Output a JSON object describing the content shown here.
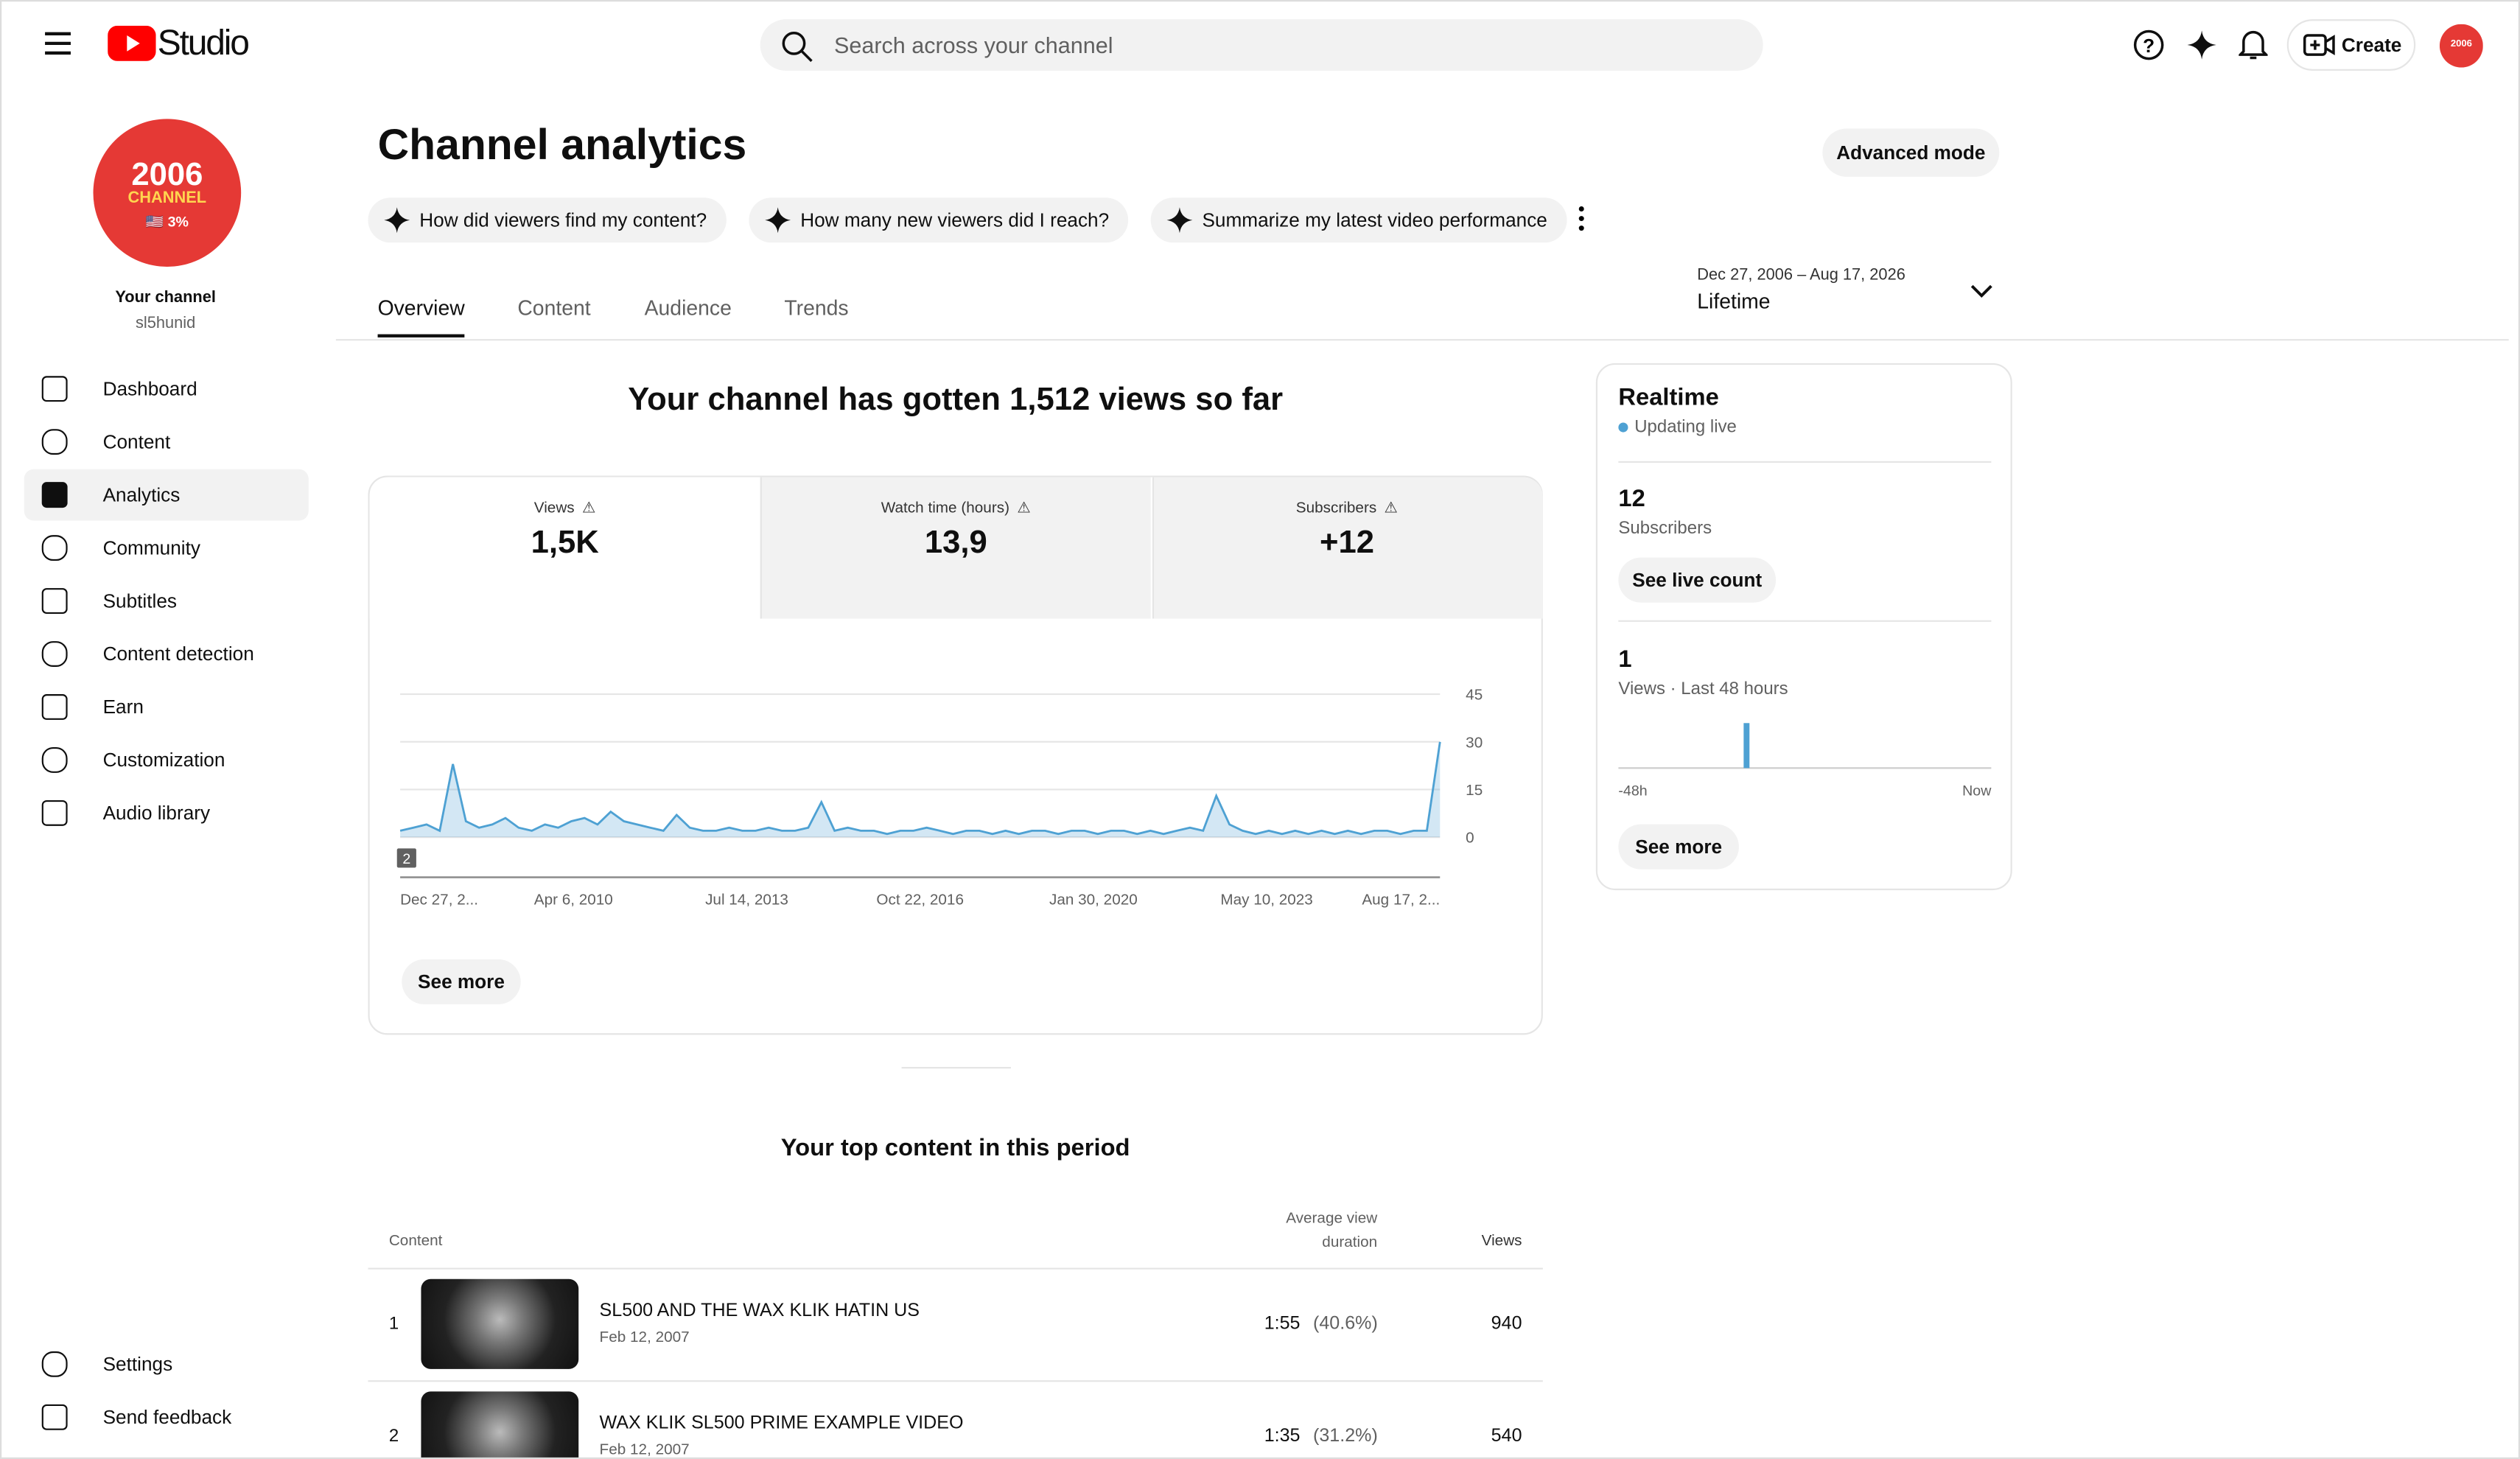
{
  "header": {
    "logo": "Studio",
    "search_placeholder": "Search across your channel",
    "create": "Create"
  },
  "sidebar": {
    "badge_year": "2006",
    "badge_word": "CHANNEL",
    "badge_small": "🇺🇸 3%",
    "channel_label": "Your channel",
    "handle": "sl5hunid",
    "items": [
      "Dashboard",
      "Content",
      "Analytics",
      "Community",
      "Subtitles",
      "Content detection",
      "Earn",
      "Customization",
      "Audio library"
    ],
    "bottom": [
      "Settings",
      "Send feedback"
    ]
  },
  "page": {
    "title": "Channel analytics",
    "advanced": "Advanced mode",
    "prompts": [
      "How did viewers find my content?",
      "How many new viewers did I reach?",
      "Summarize my latest video performance"
    ],
    "tabs": [
      "Overview",
      "Content",
      "Audience",
      "Trends"
    ],
    "date_range": "Dec 27, 2006 – Aug 17, 2026",
    "period": "Lifetime"
  },
  "summary": "Your channel has gotten 1,512 views so far",
  "metrics": [
    {
      "label": "Views",
      "value": "1,5K"
    },
    {
      "label": "Watch time (hours)",
      "value": "13,9"
    },
    {
      "label": "Subscribers",
      "value": "+12"
    }
  ],
  "chart_data": {
    "type": "line",
    "color": "#4ea1d3",
    "x_labels": [
      "Dec 27, 2...",
      "Apr 6, 2010",
      "Jul 14, 2013",
      "Oct 22, 2016",
      "Jan 30, 2020",
      "May 10, 2023",
      "Aug 17, 2..."
    ],
    "values": [
      2,
      3,
      4,
      2,
      23,
      5,
      3,
      4,
      6,
      3,
      2,
      4,
      3,
      5,
      6,
      4,
      8,
      5,
      4,
      3,
      2,
      7,
      3,
      2,
      2,
      3,
      2,
      2,
      3,
      2,
      2,
      3,
      11,
      2,
      3,
      2,
      2,
      1,
      2,
      2,
      3,
      2,
      1,
      2,
      2,
      1,
      2,
      1,
      2,
      2,
      1,
      2,
      2,
      1,
      2,
      2,
      1,
      2,
      1,
      2,
      3,
      2,
      13,
      4,
      2,
      1,
      2,
      1,
      2,
      1,
      2,
      1,
      2,
      1,
      2,
      2,
      1,
      2,
      2,
      30
    ],
    "ylim": [
      0,
      45
    ],
    "yticks": [
      0,
      15,
      30,
      45
    ],
    "grid": true,
    "marker": "2",
    "see_more": "See more"
  },
  "realtime": {
    "title": "Realtime",
    "status": "Updating live",
    "subs_value": 12,
    "subs_label": "Subscribers",
    "live_button": "See live count",
    "views_value": 1,
    "views_label": "Views · Last 48 hours",
    "axis_start": "-48h",
    "axis_end": "Now",
    "see_more": "See more",
    "chart_values": [
      0,
      0,
      0,
      0,
      0,
      0,
      0,
      0,
      0,
      0,
      0,
      0,
      0,
      0,
      0,
      0,
      1,
      0,
      0,
      0,
      0,
      0,
      0,
      0,
      0,
      0,
      0,
      0,
      0,
      0,
      0,
      0,
      0,
      0,
      0,
      0,
      0,
      0,
      0,
      0,
      0,
      0,
      0,
      0,
      0,
      0,
      0,
      0
    ],
    "color": "#4ea1d3"
  },
  "top_content": {
    "title": "Your top content in this period",
    "col_content": "Content",
    "col_duration": "Average view duration",
    "col_views": "Views",
    "rows": [
      {
        "rank": 1,
        "title": "SL500 AND THE WAX KLIK HATIN US",
        "date": "Feb 12, 2007",
        "duration": "1:55",
        "percent": "(40.6%)",
        "views": 940
      },
      {
        "rank": 2,
        "title": "WAX KLIK SL500 PRIME EXAMPLE VIDEO",
        "date": "Feb 12, 2007",
        "duration": "1:35",
        "percent": "(31.2%)",
        "views": 540
      }
    ]
  }
}
